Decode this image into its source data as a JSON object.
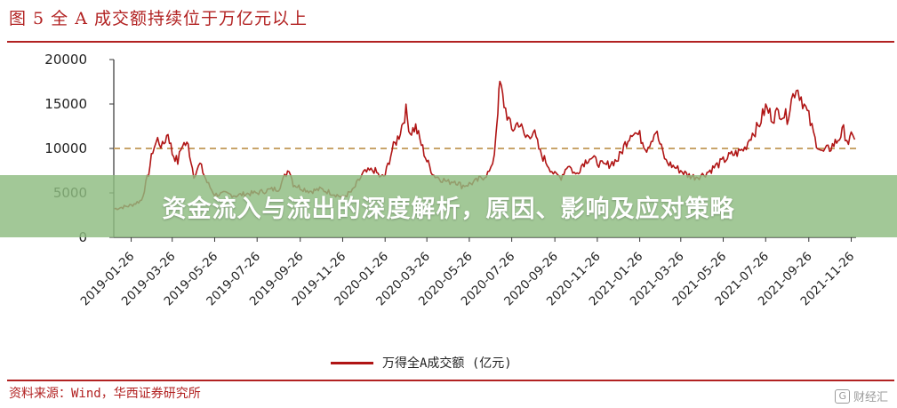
{
  "figure": {
    "title": "图 5  全 A 成交额持续位于万亿元以上",
    "source": "资料来源：Wind，华西证券研究所"
  },
  "banner": {
    "headline": "资金流入与流出的深度解析，原因、影响及应对策略"
  },
  "watermark": {
    "icon": "G",
    "text": "财经汇"
  },
  "colors": {
    "accent": "#b22222",
    "series": "#b01515",
    "reference": "#c8a46a",
    "banner": "#8ebc80"
  },
  "chart_data": {
    "type": "line",
    "title": "图 5  全 A 成交额持续位于万亿元以上",
    "xlabel": "",
    "ylabel": "",
    "ylim": [
      0,
      20000
    ],
    "yticks": [
      0,
      5000,
      10000,
      15000,
      20000
    ],
    "xticks": [
      "2019-01-26",
      "2019-03-26",
      "2019-05-26",
      "2019-07-26",
      "2019-09-26",
      "2019-11-26",
      "2020-01-26",
      "2020-03-26",
      "2020-05-26",
      "2020-07-26",
      "2020-09-26",
      "2020-11-26",
      "2021-01-26",
      "2021-03-26",
      "2021-05-26",
      "2021-07-26",
      "2021-09-26",
      "2021-11-26"
    ],
    "grid": false,
    "legend": "bottom",
    "reference_line": 10000,
    "series": [
      {
        "name": "万得全A成交额 (亿元)",
        "points": [
          [
            "2019-01-02",
            3200
          ],
          [
            "2019-01-26",
            3600
          ],
          [
            "2019-02-10",
            4200
          ],
          [
            "2019-02-20",
            7200
          ],
          [
            "2019-02-26",
            9800
          ],
          [
            "2019-03-05",
            11000
          ],
          [
            "2019-03-12",
            10200
          ],
          [
            "2019-03-20",
            11800
          ],
          [
            "2019-03-26",
            9500
          ],
          [
            "2019-04-03",
            8500
          ],
          [
            "2019-04-10",
            10600
          ],
          [
            "2019-04-18",
            10300
          ],
          [
            "2019-04-26",
            7000
          ],
          [
            "2019-05-05",
            8200
          ],
          [
            "2019-05-15",
            6200
          ],
          [
            "2019-05-26",
            4800
          ],
          [
            "2019-06-10",
            4900
          ],
          [
            "2019-06-26",
            4700
          ],
          [
            "2019-07-10",
            4900
          ],
          [
            "2019-07-26",
            5000
          ],
          [
            "2019-08-10",
            5300
          ],
          [
            "2019-08-26",
            5500
          ],
          [
            "2019-09-10",
            7800
          ],
          [
            "2019-09-16",
            6000
          ],
          [
            "2019-09-26",
            5600
          ],
          [
            "2019-10-10",
            5200
          ],
          [
            "2019-10-26",
            5400
          ],
          [
            "2019-11-10",
            5000
          ],
          [
            "2019-11-26",
            4500
          ],
          [
            "2019-12-10",
            5200
          ],
          [
            "2019-12-20",
            6500
          ],
          [
            "2019-12-26",
            7200
          ],
          [
            "2020-01-10",
            7600
          ],
          [
            "2020-01-20",
            6700
          ],
          [
            "2020-01-26",
            7000
          ],
          [
            "2020-02-05",
            9800
          ],
          [
            "2020-02-15",
            11500
          ],
          [
            "2020-02-25",
            14200
          ],
          [
            "2020-03-02",
            11800
          ],
          [
            "2020-03-10",
            12400
          ],
          [
            "2020-03-20",
            10000
          ],
          [
            "2020-03-26",
            8600
          ],
          [
            "2020-04-05",
            7000
          ],
          [
            "2020-04-15",
            6600
          ],
          [
            "2020-04-26",
            6200
          ],
          [
            "2020-05-05",
            6400
          ],
          [
            "2020-05-15",
            5800
          ],
          [
            "2020-05-26",
            6000
          ],
          [
            "2020-06-05",
            6300
          ],
          [
            "2020-06-15",
            6800
          ],
          [
            "2020-06-26",
            7500
          ],
          [
            "2020-07-01",
            9500
          ],
          [
            "2020-07-06",
            14500
          ],
          [
            "2020-07-09",
            17300
          ],
          [
            "2020-07-15",
            15000
          ],
          [
            "2020-07-26",
            12000
          ],
          [
            "2020-08-05",
            13000
          ],
          [
            "2020-08-15",
            11200
          ],
          [
            "2020-08-26",
            12000
          ],
          [
            "2020-09-05",
            9500
          ],
          [
            "2020-09-15",
            8300
          ],
          [
            "2020-09-26",
            7000
          ],
          [
            "2020-10-05",
            6800
          ],
          [
            "2020-10-15",
            8200
          ],
          [
            "2020-10-26",
            7000
          ],
          [
            "2020-11-05",
            8300
          ],
          [
            "2020-11-15",
            9000
          ],
          [
            "2020-11-26",
            8500
          ],
          [
            "2020-12-05",
            8000
          ],
          [
            "2020-12-15",
            8300
          ],
          [
            "2020-12-26",
            8800
          ],
          [
            "2021-01-05",
            10500
          ],
          [
            "2021-01-15",
            12000
          ],
          [
            "2021-01-26",
            11400
          ],
          [
            "2021-02-05",
            10000
          ],
          [
            "2021-02-18",
            12000
          ],
          [
            "2021-02-26",
            10000
          ],
          [
            "2021-03-05",
            8500
          ],
          [
            "2021-03-15",
            8000
          ],
          [
            "2021-03-26",
            7500
          ],
          [
            "2021-04-05",
            7000
          ],
          [
            "2021-04-15",
            6800
          ],
          [
            "2021-04-26",
            7000
          ],
          [
            "2021-05-05",
            7400
          ],
          [
            "2021-05-15",
            8000
          ],
          [
            "2021-05-26",
            8600
          ],
          [
            "2021-06-05",
            9200
          ],
          [
            "2021-06-15",
            9500
          ],
          [
            "2021-06-26",
            10000
          ],
          [
            "2021-07-05",
            11500
          ],
          [
            "2021-07-15",
            12400
          ],
          [
            "2021-07-26",
            14600
          ],
          [
            "2021-08-05",
            13500
          ],
          [
            "2021-08-15",
            14200
          ],
          [
            "2021-08-26",
            13500
          ],
          [
            "2021-09-01",
            15400
          ],
          [
            "2021-09-08",
            17000
          ],
          [
            "2021-09-15",
            15800
          ],
          [
            "2021-09-26",
            13500
          ],
          [
            "2021-10-05",
            11000
          ],
          [
            "2021-10-15",
            9500
          ],
          [
            "2021-10-26",
            10000
          ],
          [
            "2021-11-05",
            10800
          ],
          [
            "2021-11-15",
            12000
          ],
          [
            "2021-11-22",
            10700
          ],
          [
            "2021-11-26",
            11200
          ],
          [
            "2021-12-01",
            11000
          ]
        ]
      }
    ]
  }
}
